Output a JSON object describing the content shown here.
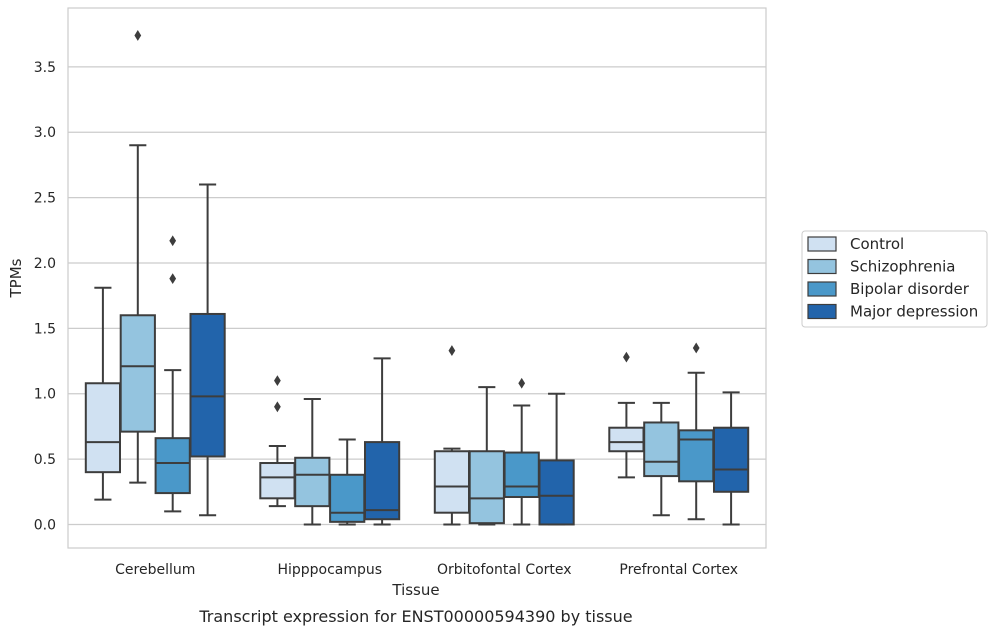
{
  "caption": "Transcript expression for ENST00000594390 by tissue",
  "chart_data": {
    "type": "box",
    "xlabel": "Tissue",
    "ylabel": "TPMs",
    "ylim": [
      -0.18,
      3.95
    ],
    "yticks": [
      "0.0",
      "0.5",
      "1.0",
      "1.5",
      "2.0",
      "2.5",
      "3.0",
      "3.5"
    ],
    "ytick_values": [
      0,
      0.5,
      1.0,
      1.5,
      2.0,
      2.5,
      3.0,
      3.5
    ],
    "grid": "horizontal",
    "legend_position": "right",
    "categories": [
      "Cerebellum",
      "Hipppocampus",
      "Orbitofontal Cortex",
      "Prefrontal Cortex"
    ],
    "series": [
      {
        "name": "Control",
        "color": "#d0e1f2",
        "boxes": [
          {
            "whislo": 0.19,
            "q1": 0.4,
            "median": 0.63,
            "q3": 1.08,
            "whishi": 1.81,
            "fliers": []
          },
          {
            "whislo": 0.14,
            "q1": 0.2,
            "median": 0.36,
            "q3": 0.47,
            "whishi": 0.6,
            "fliers": [
              0.9,
              1.1
            ]
          },
          {
            "whislo": 0.0,
            "q1": 0.09,
            "median": 0.29,
            "q3": 0.56,
            "whishi": 0.58,
            "fliers": [
              1.33
            ]
          },
          {
            "whislo": 0.36,
            "q1": 0.56,
            "median": 0.63,
            "q3": 0.74,
            "whishi": 0.93,
            "fliers": [
              1.28
            ]
          }
        ]
      },
      {
        "name": "Schizophrenia",
        "color": "#94c4df",
        "boxes": [
          {
            "whislo": 0.32,
            "q1": 0.71,
            "median": 1.21,
            "q3": 1.6,
            "whishi": 2.9,
            "fliers": [
              3.74
            ]
          },
          {
            "whislo": 0.0,
            "q1": 0.14,
            "median": 0.38,
            "q3": 0.51,
            "whishi": 0.96,
            "fliers": []
          },
          {
            "whislo": 0.0,
            "q1": 0.01,
            "median": 0.2,
            "q3": 0.56,
            "whishi": 1.05,
            "fliers": []
          },
          {
            "whislo": 0.07,
            "q1": 0.37,
            "median": 0.48,
            "q3": 0.78,
            "whishi": 0.93,
            "fliers": []
          }
        ]
      },
      {
        "name": "Bipolar disorder",
        "color": "#4a98c9",
        "boxes": [
          {
            "whislo": 0.1,
            "q1": 0.24,
            "median": 0.47,
            "q3": 0.66,
            "whishi": 1.18,
            "fliers": [
              1.88,
              2.17
            ]
          },
          {
            "whislo": 0.0,
            "q1": 0.02,
            "median": 0.09,
            "q3": 0.38,
            "whishi": 0.65,
            "fliers": []
          },
          {
            "whislo": 0.0,
            "q1": 0.21,
            "median": 0.29,
            "q3": 0.55,
            "whishi": 0.91,
            "fliers": [
              1.08
            ]
          },
          {
            "whislo": 0.04,
            "q1": 0.33,
            "median": 0.65,
            "q3": 0.72,
            "whishi": 1.16,
            "fliers": [
              1.35
            ]
          }
        ]
      },
      {
        "name": "Major depression",
        "color": "#2264ab",
        "boxes": [
          {
            "whislo": 0.07,
            "q1": 0.52,
            "median": 0.98,
            "q3": 1.61,
            "whishi": 2.6,
            "fliers": []
          },
          {
            "whislo": 0.0,
            "q1": 0.04,
            "median": 0.11,
            "q3": 0.63,
            "whishi": 1.27,
            "fliers": []
          },
          {
            "whislo": 0.0,
            "q1": 0.0,
            "median": 0.22,
            "q3": 0.49,
            "whishi": 1.0,
            "fliers": []
          },
          {
            "whislo": 0.0,
            "q1": 0.25,
            "median": 0.42,
            "q3": 0.74,
            "whishi": 1.01,
            "fliers": []
          }
        ]
      }
    ]
  }
}
